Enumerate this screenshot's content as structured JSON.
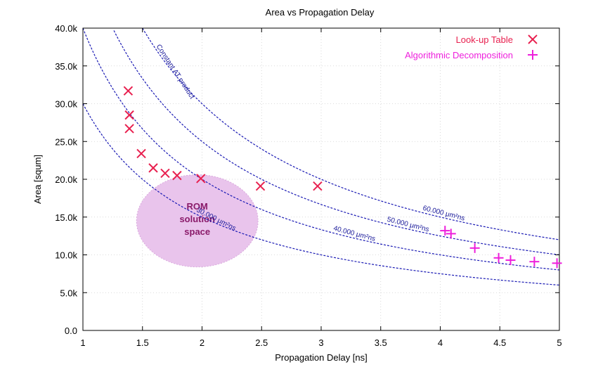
{
  "chart_data": {
    "type": "scatter",
    "title": "Area vs Propagation Delay",
    "xlabel": "Propagation Delay [ns]",
    "ylabel": "Area [squm]",
    "xlim": [
      1,
      5
    ],
    "ylim": [
      0,
      40000
    ],
    "x_ticks": [
      1,
      1.5,
      2,
      2.5,
      3,
      3.5,
      4,
      4.5,
      5
    ],
    "x_tick_labels": [
      "1",
      "1.5",
      "2",
      "2.5",
      "3",
      "3.5",
      "4",
      "4.5",
      "5"
    ],
    "y_ticks": [
      0,
      5000,
      10000,
      15000,
      20000,
      25000,
      30000,
      35000,
      40000
    ],
    "y_tick_labels": [
      "0.0",
      "5.0k",
      "10.0k",
      "15.0k",
      "20.0k",
      "25.0k",
      "30.0k",
      "35.0k",
      "40.0k"
    ],
    "grid": true,
    "legend_position": "top-right",
    "series": [
      {
        "name": "Look-up Table",
        "marker": "x",
        "color": "#e8204f",
        "points": [
          {
            "x": 1.38,
            "y": 31700
          },
          {
            "x": 1.39,
            "y": 28500
          },
          {
            "x": 1.39,
            "y": 26700
          },
          {
            "x": 1.49,
            "y": 23400
          },
          {
            "x": 1.59,
            "y": 21500
          },
          {
            "x": 1.69,
            "y": 20800
          },
          {
            "x": 1.79,
            "y": 20500
          },
          {
            "x": 1.99,
            "y": 20100
          },
          {
            "x": 2.49,
            "y": 19100
          },
          {
            "x": 2.97,
            "y": 19100
          }
        ]
      },
      {
        "name": "Algorithmic Decomposition",
        "marker": "+",
        "color": "#ee1fdc",
        "points": [
          {
            "x": 4.04,
            "y": 13200
          },
          {
            "x": 4.09,
            "y": 12800
          },
          {
            "x": 4.29,
            "y": 10900
          },
          {
            "x": 4.49,
            "y": 9600
          },
          {
            "x": 4.59,
            "y": 9300
          },
          {
            "x": 4.79,
            "y": 9100
          },
          {
            "x": 4.98,
            "y": 8900
          }
        ]
      }
    ],
    "curves": [
      {
        "label": "30.000 μm²ns",
        "constant": 30000
      },
      {
        "label": "40.000 μm²ns",
        "constant": 40000
      },
      {
        "label": "50.000 μm²ns",
        "constant": 50000
      },
      {
        "label": "60.000 μm²ns",
        "constant": 60000
      }
    ],
    "curve_annotation": "Constant AT product",
    "region": {
      "label_lines": [
        "ROM",
        "solution",
        "space"
      ],
      "center": {
        "x": 1.96,
        "y": 14500
      },
      "radius_x": 0.51,
      "radius_y": 6100,
      "color": "#e9c4ec"
    },
    "curve_color": "#1a1ab4"
  }
}
